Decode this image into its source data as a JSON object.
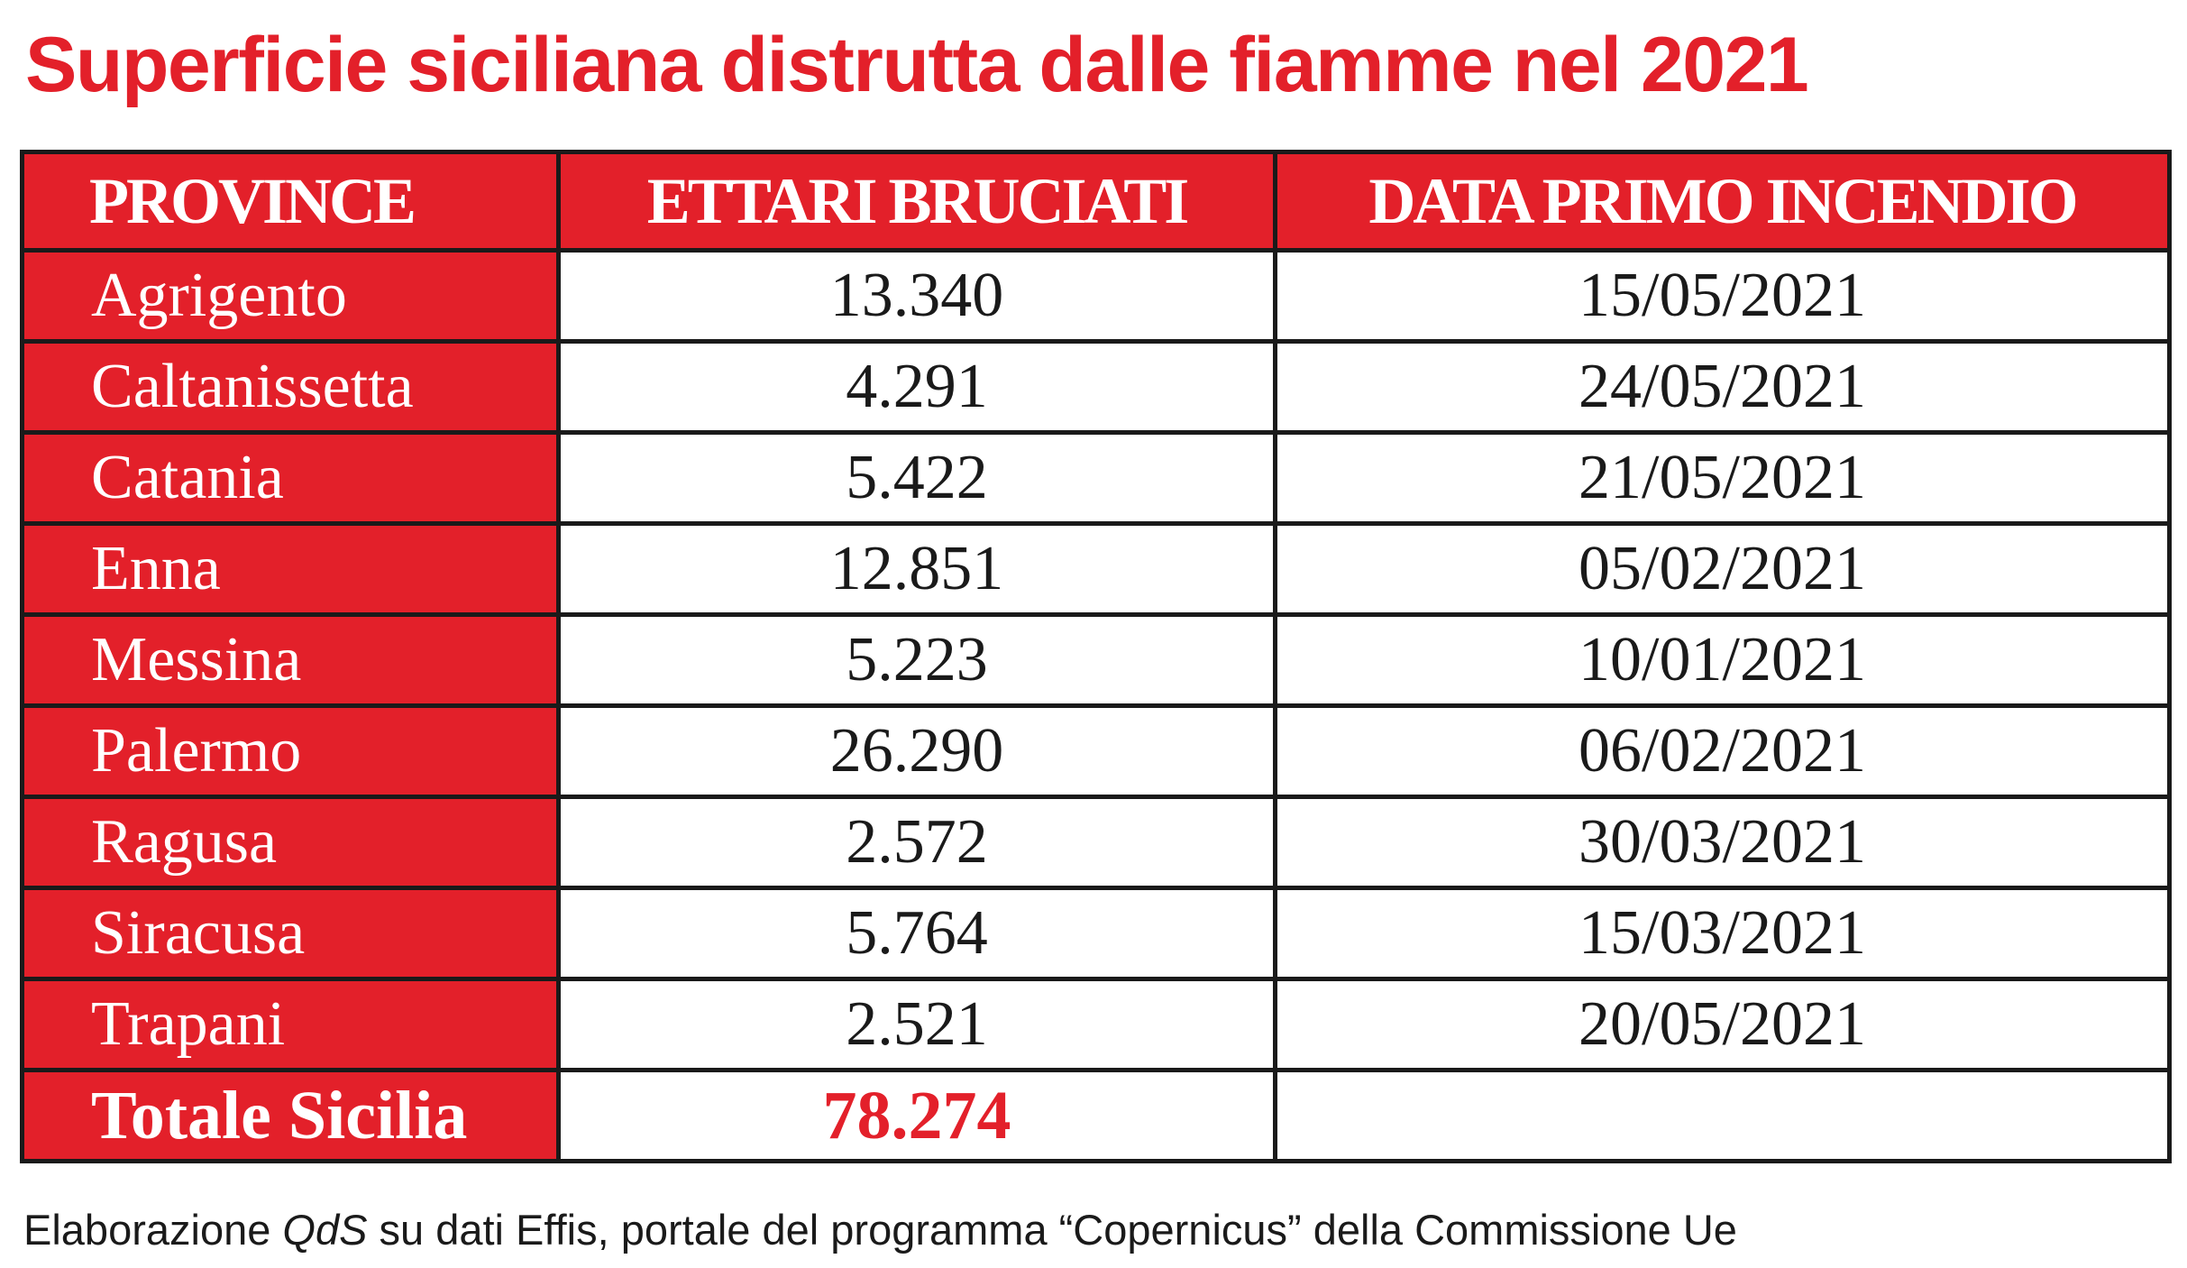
{
  "title": "Superficie siciliana distrutta dalle fiamme nel 2021",
  "colors": {
    "accent_red": "#e3202a",
    "text_dark": "#1a1a1a",
    "background": "#ffffff"
  },
  "table": {
    "headers": [
      "PROVINCE",
      "ETTARI BRUCIATI",
      "DATA PRIMO INCENDIO"
    ],
    "rows": [
      {
        "province": "Agrigento",
        "ettari": "13.340",
        "data": "15/05/2021"
      },
      {
        "province": "Caltanissetta",
        "ettari": "4.291",
        "data": "24/05/2021"
      },
      {
        "province": "Catania",
        "ettari": "5.422",
        "data": "21/05/2021"
      },
      {
        "province": "Enna",
        "ettari": "12.851",
        "data": "05/02/2021"
      },
      {
        "province": "Messina",
        "ettari": "5.223",
        "data": "10/01/2021"
      },
      {
        "province": "Palermo",
        "ettari": "26.290",
        "data": "06/02/2021"
      },
      {
        "province": "Ragusa",
        "ettari": "2.572",
        "data": "30/03/2021"
      },
      {
        "province": "Siracusa",
        "ettari": "5.764",
        "data": "15/03/2021"
      },
      {
        "province": "Trapani",
        "ettari": "2.521",
        "data": "20/05/2021"
      }
    ],
    "total": {
      "label": "Totale Sicilia",
      "ettari": "78.274",
      "data": ""
    }
  },
  "source": {
    "prefix": "Elaborazione ",
    "italic": "QdS",
    "suffix": " su dati Effis, portale del programma “Copernicus” della Commissione Ue"
  }
}
